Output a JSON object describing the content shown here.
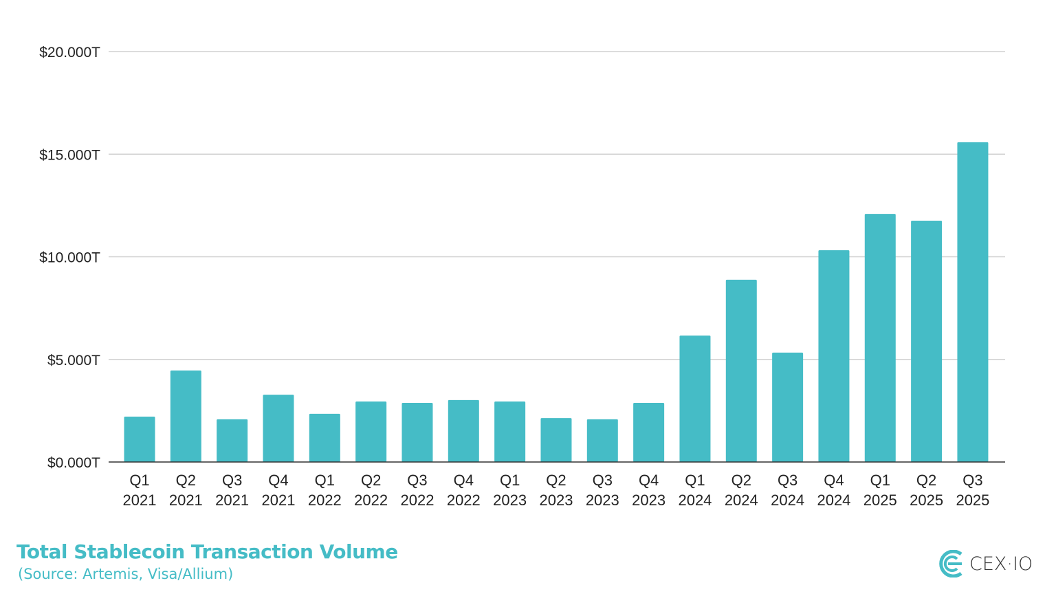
{
  "chart_data": {
    "type": "bar",
    "title": "Total Stablecoin Transaction Volume",
    "subtitle": "(Source: Artemis, Visa/Allium)",
    "xlabel": "",
    "ylabel": "",
    "categories": [
      [
        "Q1",
        "2021"
      ],
      [
        "Q2",
        "2021"
      ],
      [
        "Q3",
        "2021"
      ],
      [
        "Q4",
        "2021"
      ],
      [
        "Q1",
        "2022"
      ],
      [
        "Q2",
        "2022"
      ],
      [
        "Q3",
        "2022"
      ],
      [
        "Q4",
        "2022"
      ],
      [
        "Q1",
        "2023"
      ],
      [
        "Q2",
        "2023"
      ],
      [
        "Q3",
        "2023"
      ],
      [
        "Q4",
        "2023"
      ],
      [
        "Q1",
        "2024"
      ],
      [
        "Q2",
        "2024"
      ],
      [
        "Q3",
        "2024"
      ],
      [
        "Q4",
        "2024"
      ],
      [
        "Q1",
        "2025"
      ],
      [
        "Q2",
        "2025"
      ],
      [
        "Q3",
        "2025"
      ]
    ],
    "values": [
      2.21,
      4.46,
      2.08,
      3.28,
      2.35,
      2.95,
      2.88,
      3.02,
      2.95,
      2.14,
      2.08,
      2.88,
      6.16,
      8.88,
      5.33,
      10.32,
      12.09,
      11.76,
      15.58
    ],
    "unit": "trillion USD",
    "ylim": [
      0,
      20
    ],
    "yticks": [
      0,
      5,
      10,
      15,
      20
    ],
    "ytick_labels": [
      "$0.000T",
      "$5.000T",
      "$10.000T",
      "$15.000T",
      "$20.000T"
    ],
    "grid": true,
    "legend": "none",
    "bar_color": "#45bcc6"
  },
  "brand": {
    "name": "CEX·IO",
    "color": "#45bcc6"
  }
}
